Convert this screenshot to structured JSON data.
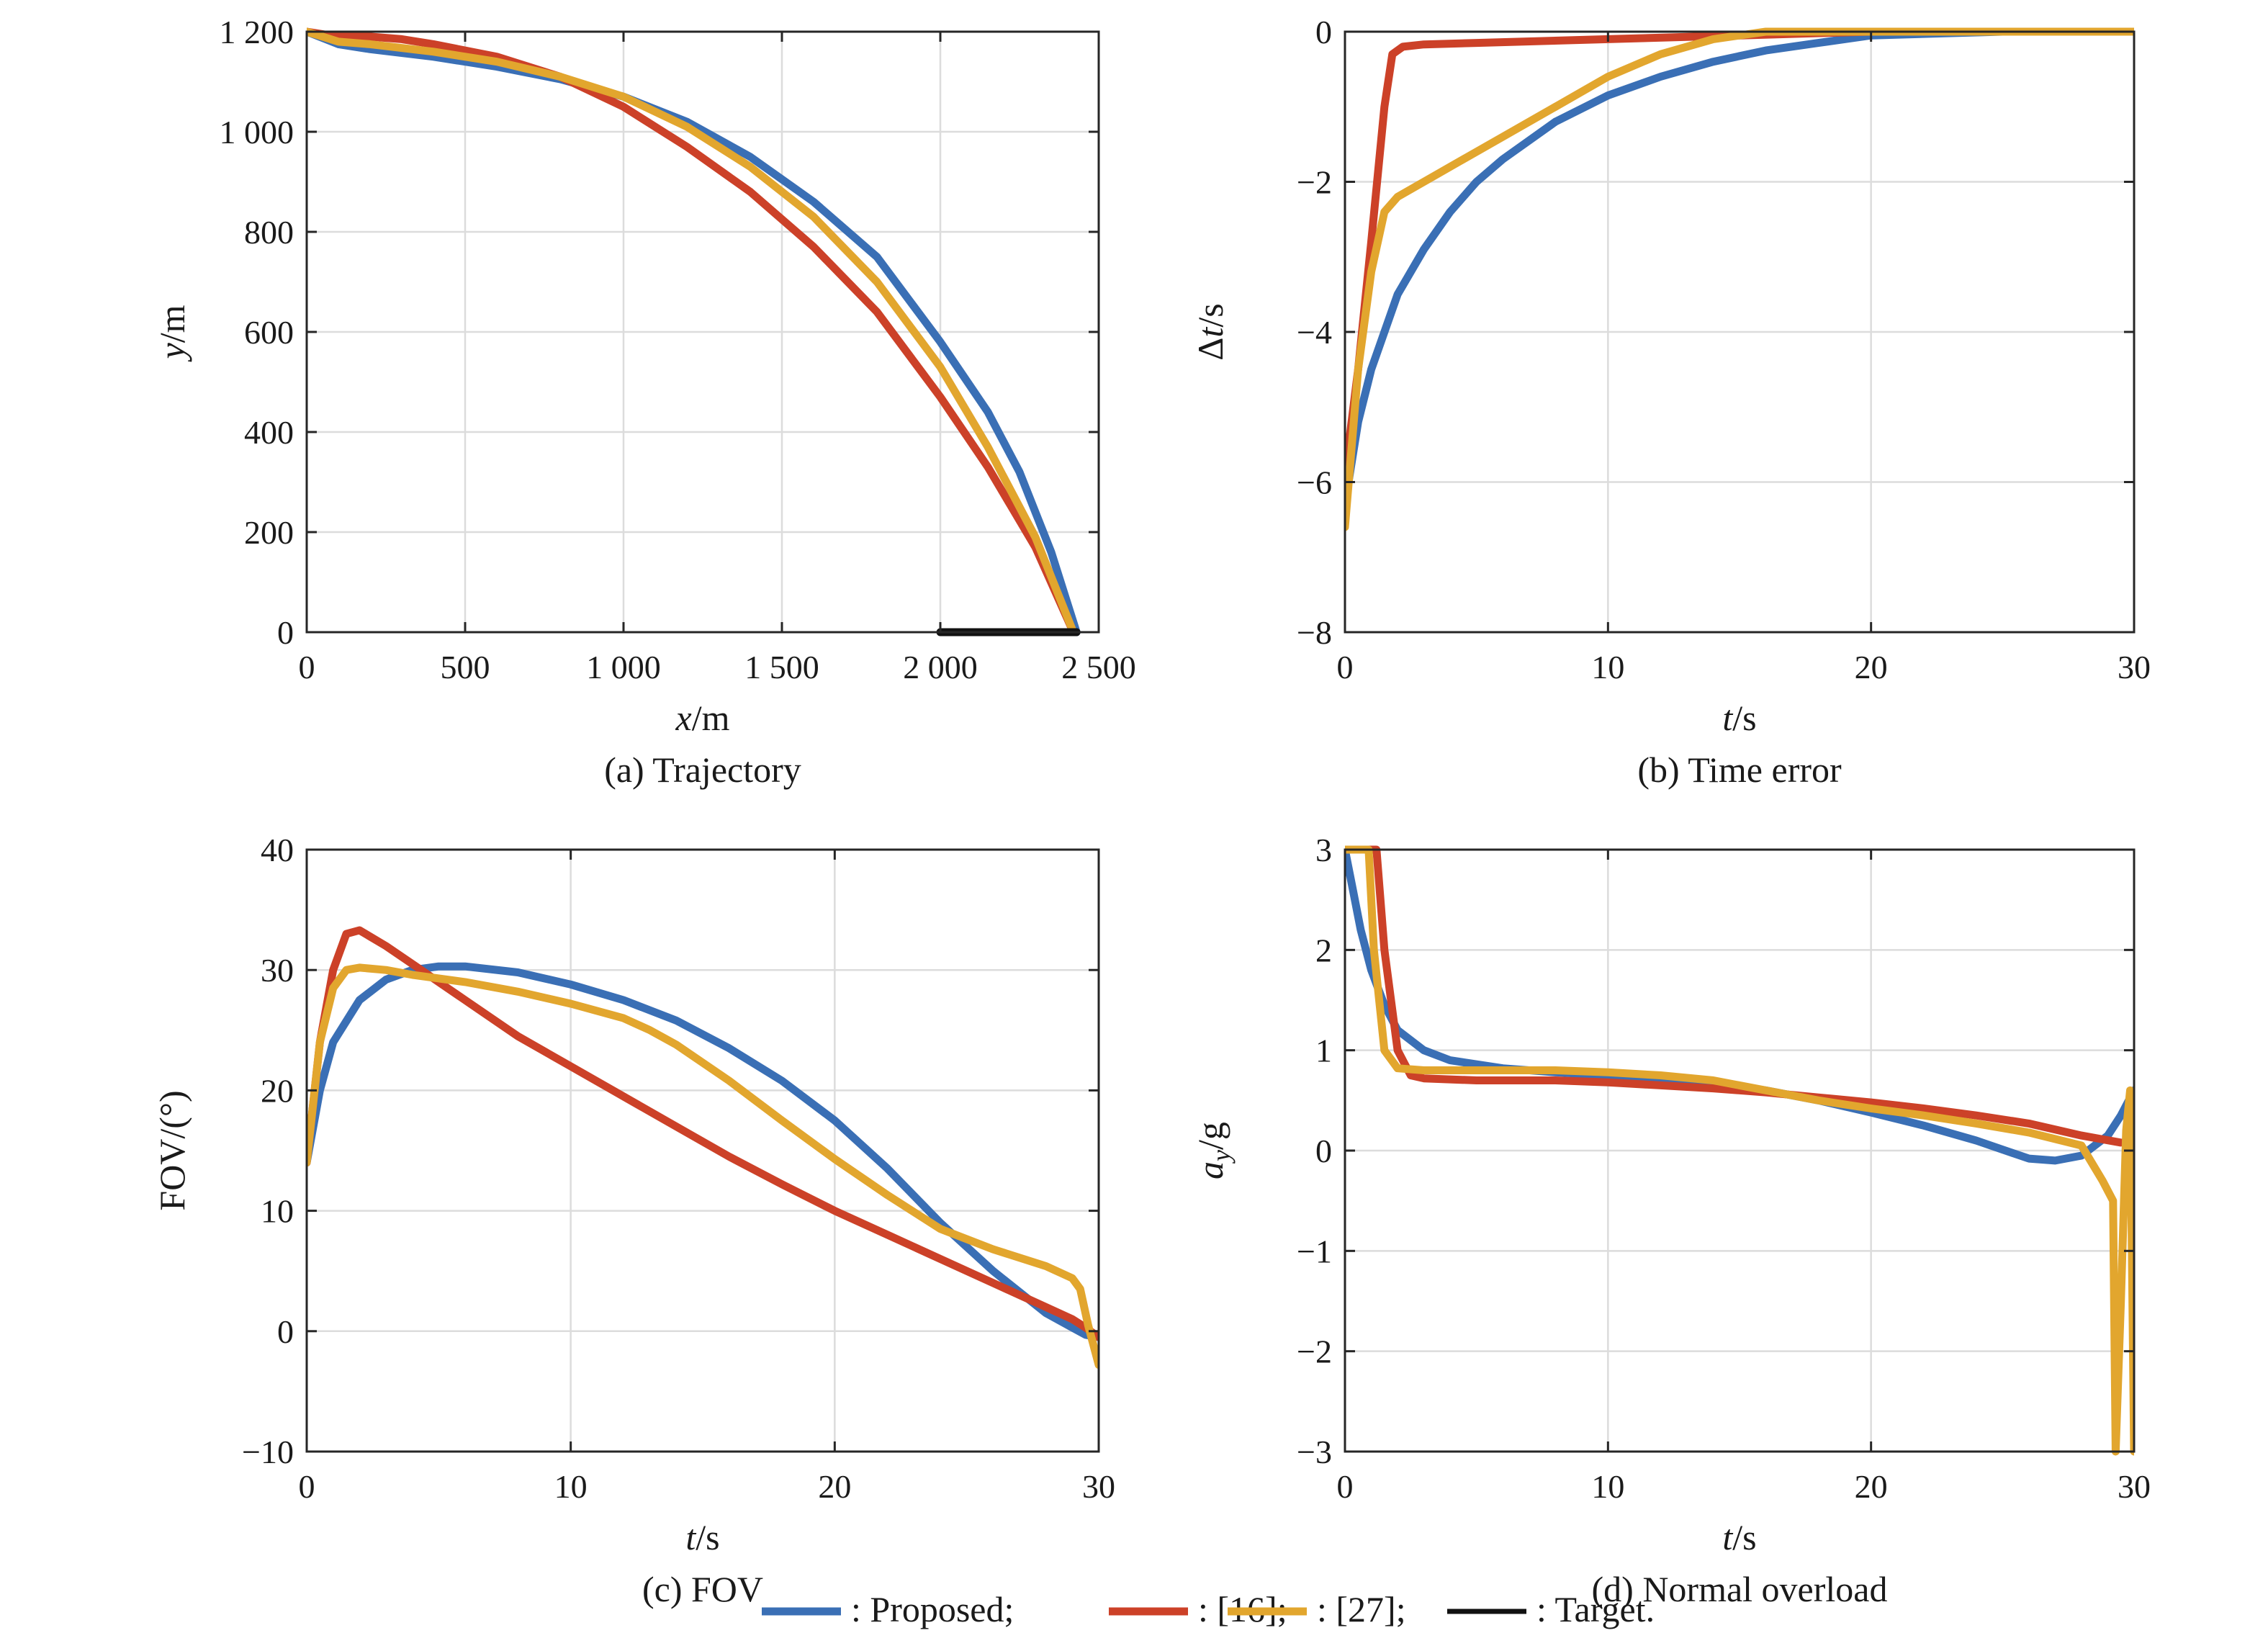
{
  "legend": {
    "items": [
      {
        "key": "proposed",
        "label": ": Proposed;"
      },
      {
        "key": "ref16",
        "label": ": [16];"
      },
      {
        "key": "ref27",
        "label": ": [27];"
      },
      {
        "key": "target",
        "label": ": Target."
      }
    ]
  },
  "colors": {
    "proposed": "#3a6fb5",
    "ref16": "#cc4128",
    "ref27": "#e2a62e",
    "target": "#111111"
  },
  "chart_data": [
    {
      "id": "a",
      "type": "line",
      "caption": "(a) Trajectory",
      "xlabel": "x/m",
      "ylabel": "y/m",
      "xlim": [
        0,
        2500
      ],
      "ylim": [
        0,
        1200
      ],
      "xticks": [
        0,
        500,
        1000,
        1500,
        2000,
        2500
      ],
      "xtick_labels": [
        "0",
        "500",
        "1 000",
        "1 500",
        "2 000",
        "2 500"
      ],
      "yticks": [
        0,
        200,
        400,
        600,
        800,
        1000,
        1200
      ],
      "ytick_labels": [
        "0",
        "200",
        "400",
        "600",
        "800",
        "1 000",
        "1 200"
      ],
      "grid": true,
      "series": [
        {
          "key": "proposed",
          "name": "Proposed",
          "x": [
            0,
            100,
            200,
            400,
            600,
            800,
            1000,
            1200,
            1400,
            1600,
            1800,
            2000,
            2150,
            2250,
            2350,
            2430
          ],
          "y": [
            1200,
            1175,
            1165,
            1150,
            1130,
            1105,
            1070,
            1020,
            950,
            860,
            750,
            580,
            440,
            320,
            160,
            0
          ]
        },
        {
          "key": "ref16",
          "name": "[16]",
          "x": [
            0,
            100,
            200,
            300,
            400,
            600,
            800,
            1000,
            1200,
            1400,
            1600,
            1800,
            2000,
            2150,
            2300,
            2420
          ],
          "y": [
            1200,
            1190,
            1190,
            1185,
            1175,
            1150,
            1110,
            1050,
            970,
            880,
            770,
            640,
            470,
            330,
            170,
            0
          ]
        },
        {
          "key": "ref27",
          "name": "[27]",
          "x": [
            0,
            100,
            200,
            400,
            600,
            800,
            1000,
            1200,
            1400,
            1600,
            1800,
            2000,
            2150,
            2300,
            2420
          ],
          "y": [
            1200,
            1180,
            1175,
            1160,
            1140,
            1110,
            1070,
            1010,
            930,
            830,
            700,
            530,
            370,
            190,
            0
          ]
        },
        {
          "key": "target",
          "name": "Target",
          "x": [
            2000,
            2430
          ],
          "y": [
            0,
            0
          ]
        }
      ]
    },
    {
      "id": "b",
      "type": "line",
      "caption": "(b) Time error",
      "xlabel": "t/s",
      "ylabel": "Δt/s",
      "xlim": [
        0,
        30
      ],
      "ylim": [
        -8,
        0
      ],
      "xticks": [
        0,
        10,
        20,
        30
      ],
      "xtick_labels": [
        "0",
        "10",
        "20",
        "30"
      ],
      "yticks": [
        -8,
        -6,
        -4,
        -2,
        0
      ],
      "ytick_labels": [
        "−8",
        "−6",
        "−4",
        "−2",
        "0"
      ],
      "grid": true,
      "series": [
        {
          "key": "proposed",
          "name": "Proposed",
          "x": [
            0,
            0.5,
            1,
            2,
            3,
            4,
            5,
            6,
            8,
            10,
            12,
            14,
            16,
            18,
            20,
            25,
            30
          ],
          "y": [
            -6.3,
            -5.2,
            -4.5,
            -3.5,
            -2.9,
            -2.4,
            -2.0,
            -1.7,
            -1.2,
            -0.85,
            -0.6,
            -0.4,
            -0.25,
            -0.15,
            -0.05,
            0,
            0
          ]
        },
        {
          "key": "ref16",
          "name": "[16]",
          "x": [
            0,
            0.5,
            1,
            1.5,
            1.8,
            2.2,
            3,
            5,
            10,
            15,
            20,
            25,
            30
          ],
          "y": [
            -5.9,
            -4.5,
            -2.8,
            -1.0,
            -0.3,
            -0.2,
            -0.17,
            -0.15,
            -0.1,
            -0.05,
            0,
            0,
            0
          ]
        },
        {
          "key": "ref27",
          "name": "[27]",
          "x": [
            0,
            0.5,
            1,
            1.5,
            2,
            3,
            4,
            6,
            8,
            10,
            12,
            14,
            16,
            20,
            25,
            30
          ],
          "y": [
            -6.6,
            -4.5,
            -3.2,
            -2.4,
            -2.2,
            -2.0,
            -1.8,
            -1.4,
            -1.0,
            -0.6,
            -0.3,
            -0.1,
            0,
            0,
            0,
            0
          ]
        }
      ]
    },
    {
      "id": "c",
      "type": "line",
      "caption": "(c) FOV",
      "xlabel": "t/s",
      "ylabel": "FOV/(°)",
      "xlim": [
        0,
        30
      ],
      "ylim": [
        -10,
        40
      ],
      "xticks": [
        0,
        10,
        20,
        30
      ],
      "xtick_labels": [
        "0",
        "10",
        "20",
        "30"
      ],
      "yticks": [
        -10,
        0,
        10,
        20,
        30,
        40
      ],
      "ytick_labels": [
        "−10",
        "0",
        "10",
        "20",
        "30",
        "40"
      ],
      "grid": true,
      "series": [
        {
          "key": "proposed",
          "name": "Proposed",
          "x": [
            0,
            0.5,
            1,
            2,
            3,
            4,
            5,
            6,
            8,
            10,
            12,
            14,
            16,
            18,
            20,
            22,
            24,
            26,
            28,
            29,
            29.5,
            30
          ],
          "y": [
            14,
            20,
            24,
            27.5,
            29.2,
            30,
            30.3,
            30.3,
            29.8,
            28.8,
            27.5,
            25.8,
            23.5,
            20.8,
            17.5,
            13.5,
            9,
            5,
            1.5,
            0.3,
            -0.3,
            -0.5
          ]
        },
        {
          "key": "ref16",
          "name": "[16]",
          "x": [
            0,
            0.5,
            1,
            1.5,
            2,
            3,
            4,
            6,
            8,
            10,
            12,
            14,
            16,
            18,
            20,
            22,
            24,
            26,
            28,
            29,
            29.5,
            30
          ],
          "y": [
            14,
            24,
            30,
            33,
            33.3,
            32,
            30.5,
            27.5,
            24.5,
            22,
            19.5,
            17,
            14.5,
            12.2,
            10,
            8,
            6,
            4,
            2,
            1,
            0.3,
            -0.5
          ]
        },
        {
          "key": "ref27",
          "name": "[27]",
          "x": [
            0,
            0.5,
            1,
            1.5,
            2,
            3,
            4,
            6,
            8,
            10,
            12,
            13,
            14,
            16,
            18,
            20,
            22,
            24,
            26,
            28,
            29,
            29.3,
            29.6,
            30
          ],
          "y": [
            14,
            24,
            28.5,
            30,
            30.2,
            30,
            29.6,
            29,
            28.2,
            27.2,
            26,
            25,
            23.8,
            20.8,
            17.5,
            14.3,
            11.3,
            8.5,
            6.8,
            5.4,
            4.4,
            3.5,
            0.5,
            -2.8
          ]
        }
      ]
    },
    {
      "id": "d",
      "type": "line",
      "caption": "(d) Normal overload",
      "xlabel": "t/s",
      "ylabel": "a_y/g",
      "xlim": [
        0,
        30
      ],
      "ylim": [
        -3,
        3
      ],
      "xticks": [
        0,
        10,
        20,
        30
      ],
      "xtick_labels": [
        "0",
        "10",
        "20",
        "30"
      ],
      "yticks": [
        -3,
        -2,
        -1,
        0,
        1,
        2,
        3
      ],
      "ytick_labels": [
        "−3",
        "−2",
        "−1",
        "0",
        "1",
        "2",
        "3"
      ],
      "grid": true,
      "series": [
        {
          "key": "proposed",
          "name": "Proposed",
          "x": [
            0,
            0.3,
            0.6,
            1,
            1.5,
            2,
            3,
            4,
            6,
            8,
            10,
            12,
            14,
            16,
            18,
            20,
            22,
            24,
            26,
            27,
            28,
            29,
            29.5,
            30
          ],
          "y": [
            3,
            2.6,
            2.2,
            1.8,
            1.45,
            1.2,
            1.0,
            0.9,
            0.82,
            0.78,
            0.75,
            0.72,
            0.68,
            0.6,
            0.5,
            0.38,
            0.25,
            0.1,
            -0.08,
            -0.1,
            -0.05,
            0.15,
            0.35,
            0.6
          ]
        },
        {
          "key": "ref16",
          "name": "[16]",
          "x": [
            0,
            1.2,
            1.5,
            2,
            2.5,
            3,
            5,
            8,
            10,
            12,
            14,
            16,
            18,
            20,
            22,
            24,
            26,
            28,
            29.5
          ],
          "y": [
            3,
            3,
            2,
            1.0,
            0.75,
            0.72,
            0.7,
            0.7,
            0.68,
            0.65,
            0.62,
            0.58,
            0.53,
            0.48,
            0.42,
            0.35,
            0.27,
            0.15,
            0.08
          ]
        },
        {
          "key": "ref27",
          "name": "[27]",
          "x": [
            0,
            0.9,
            1.1,
            1.5,
            2,
            3,
            5,
            8,
            10,
            12,
            14,
            16,
            18,
            20,
            22,
            24,
            26,
            28,
            28.8,
            29.2,
            29.3,
            29.5,
            29.7,
            29.85,
            30
          ],
          "y": [
            3,
            3,
            2,
            1.0,
            0.82,
            0.8,
            0.8,
            0.8,
            0.78,
            0.75,
            0.7,
            0.6,
            0.5,
            0.42,
            0.35,
            0.27,
            0.18,
            0.05,
            -0.3,
            -0.5,
            -3,
            -1.5,
            0.2,
            0.6,
            -3
          ]
        }
      ]
    }
  ]
}
